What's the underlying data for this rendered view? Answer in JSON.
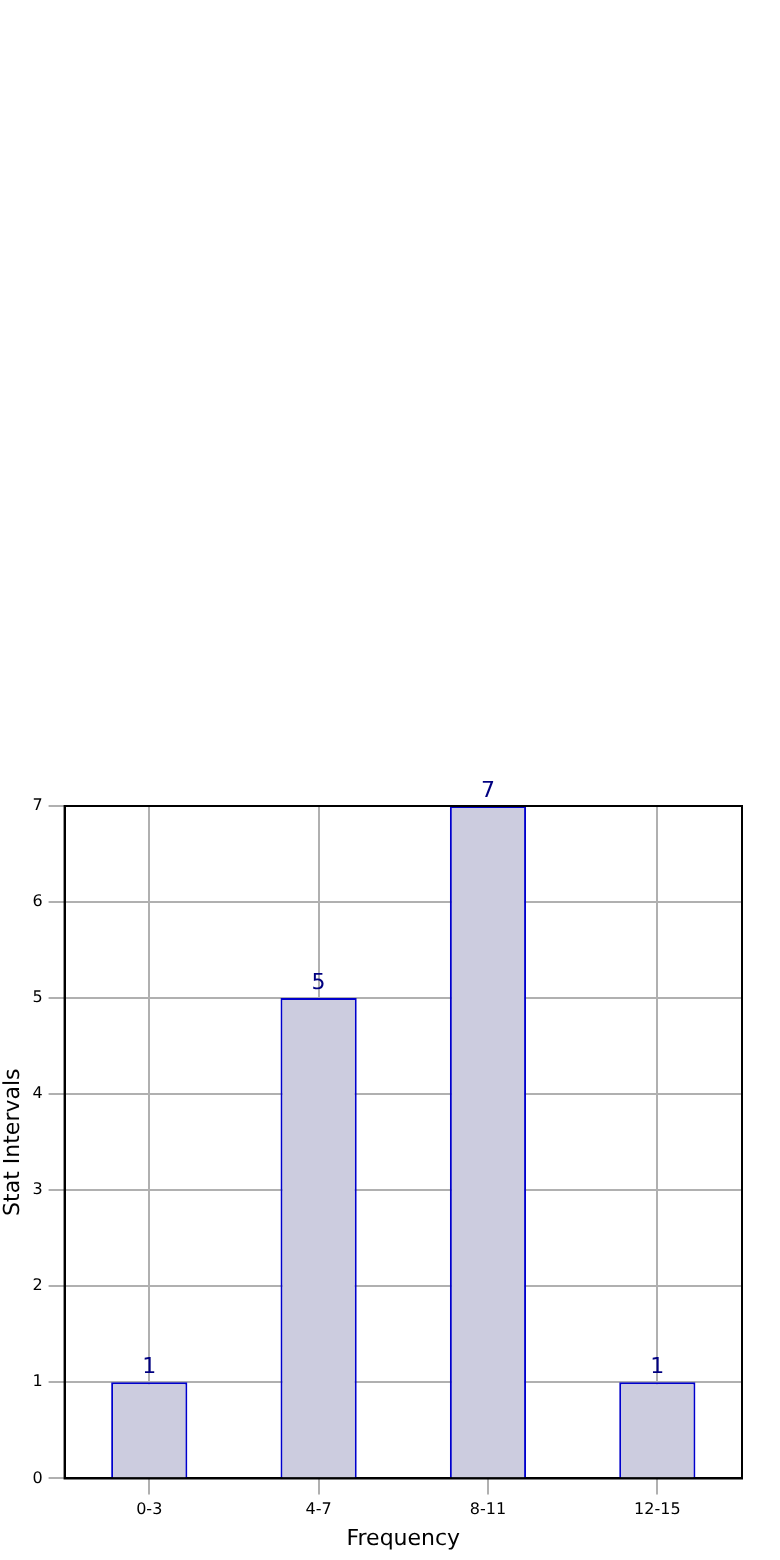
{
  "chart_data": {
    "type": "bar",
    "xlabel": "Frequency",
    "ylabel": "Stat Intervals",
    "categories": [
      "0-3",
      "4-7",
      "8-11",
      "12-15"
    ],
    "values": [
      1,
      5,
      7,
      1
    ],
    "color": "#ccccdf",
    "ylim": [
      0,
      7
    ],
    "yticks": [
      0,
      1,
      2,
      3,
      4,
      5,
      6,
      7
    ],
    "grid": true,
    "data_labels": true
  }
}
